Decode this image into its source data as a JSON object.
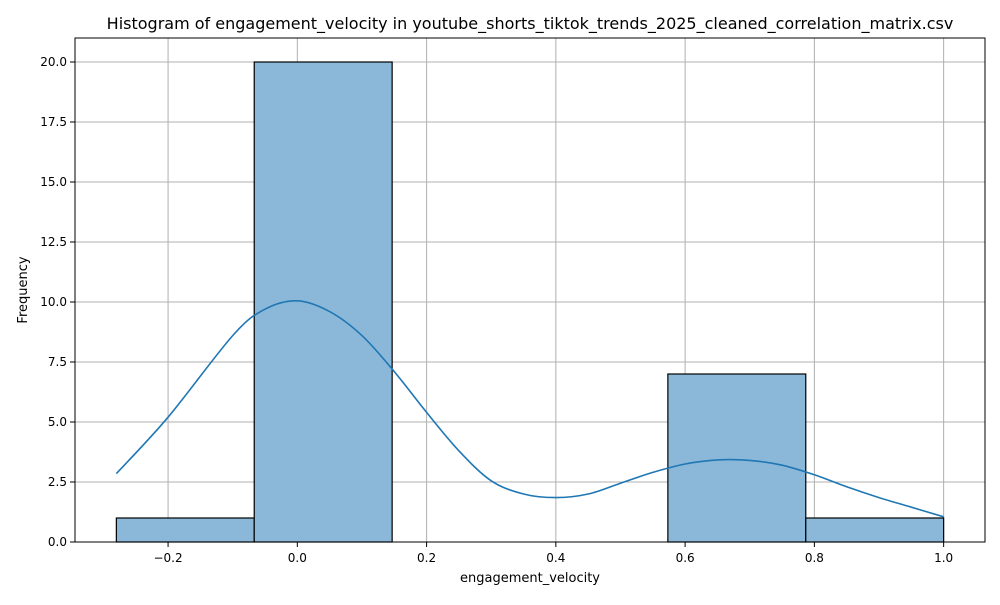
{
  "chart_data": {
    "type": "bar",
    "title": "Histogram of engagement_velocity in youtube_shorts_tiktok_trends_2025_cleaned_correlation_matrix.csv",
    "xlabel": "engagement_velocity",
    "ylabel": "Frequency",
    "xlim": [
      -0.344,
      1.064
    ],
    "ylim": [
      0,
      21
    ],
    "grid": true,
    "x_ticks": [
      -0.2,
      0.0,
      0.2,
      0.4,
      0.6,
      0.8,
      1.0
    ],
    "x_tick_labels": [
      "−0.2",
      "0.0",
      "0.2",
      "0.4",
      "0.6",
      "0.8",
      "1.0"
    ],
    "y_ticks": [
      0,
      2.5,
      5,
      7.5,
      10,
      12.5,
      15,
      17.5,
      20
    ],
    "y_tick_labels": [
      "0.0",
      "2.5",
      "5.0",
      "7.5",
      "10.0",
      "12.5",
      "15.0",
      "17.5",
      "20.0"
    ],
    "bins": [
      {
        "start": -0.28,
        "end": -0.0667,
        "count": 1
      },
      {
        "start": -0.0667,
        "end": 0.1467,
        "count": 20
      },
      {
        "start": 0.1467,
        "end": 0.36,
        "count": 0
      },
      {
        "start": 0.36,
        "end": 0.5733,
        "count": 0
      },
      {
        "start": 0.5733,
        "end": 0.7867,
        "count": 7
      },
      {
        "start": 0.7867,
        "end": 1.0,
        "count": 1
      }
    ],
    "kde": {
      "x": [
        -0.28,
        -0.2,
        -0.1,
        -0.05,
        0.0,
        0.05,
        0.1,
        0.15,
        0.2,
        0.25,
        0.3,
        0.35,
        0.4,
        0.45,
        0.5,
        0.55,
        0.6,
        0.65,
        0.7,
        0.75,
        0.8,
        0.85,
        0.9,
        0.95,
        1.0
      ],
      "y": [
        2.85,
        5.2,
        8.6,
        9.7,
        10.05,
        9.6,
        8.6,
        7.1,
        5.4,
        3.8,
        2.55,
        2.0,
        1.85,
        2.0,
        2.45,
        2.9,
        3.25,
        3.42,
        3.4,
        3.2,
        2.8,
        2.3,
        1.85,
        1.45,
        1.05
      ]
    },
    "colors": {
      "bar_fill": "#8bb8d9",
      "bar_edge": "#000000",
      "kde_line": "#1f77b4",
      "grid": "#b0b0b0"
    }
  }
}
